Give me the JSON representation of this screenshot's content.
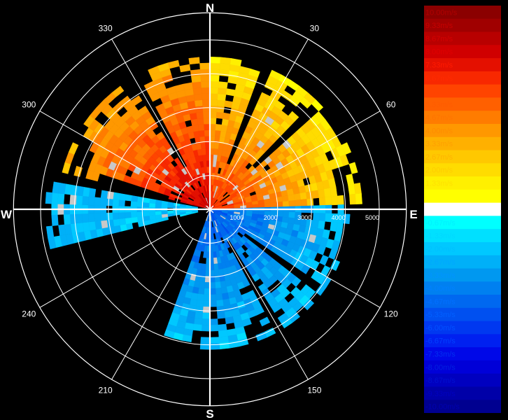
{
  "chart_data": {
    "type": "polar-heatmap",
    "title": "",
    "cardinal_labels": {
      "north": "N",
      "east": "E",
      "south": "S",
      "west": "W"
    },
    "azimuth_labels": [
      {
        "angle": 30,
        "text": "30"
      },
      {
        "angle": 60,
        "text": "60"
      },
      {
        "angle": 120,
        "text": "120"
      },
      {
        "angle": 150,
        "text": "150"
      },
      {
        "angle": 210,
        "text": "210"
      },
      {
        "angle": 240,
        "text": "240"
      },
      {
        "angle": 300,
        "text": "300"
      },
      {
        "angle": 330,
        "text": "330"
      }
    ],
    "range_rings": [
      1000,
      2000,
      3000,
      4000,
      5000
    ],
    "range_ring_labels": [
      "1000",
      "2000",
      "3000",
      "4000",
      "5000"
    ],
    "range_max": 5800,
    "grid": true,
    "legend_position": "right",
    "unit": "m/s",
    "colorbar": [
      {
        "label": "10.00m/s",
        "color": "#8b0000",
        "text_color": "#b00000"
      },
      {
        "label": "9.33m/s",
        "color": "#a00000",
        "text_color": "#c80000"
      },
      {
        "label": "8.67m/s",
        "color": "#b80000",
        "text_color": "#d40000"
      },
      {
        "label": "8.00m/s",
        "color": "#d00000",
        "text_color": "#e00000"
      },
      {
        "label": "7.33m/s",
        "color": "#e41000",
        "text_color": "#ff1a00"
      },
      {
        "label": "6.67m/s",
        "color": "#f82800",
        "text_color": "#ff2a00"
      },
      {
        "label": "6.00m/s",
        "color": "#ff4400",
        "text_color": "#ff4400"
      },
      {
        "label": "5.33m/s",
        "color": "#ff6000",
        "text_color": "#ff5c00"
      },
      {
        "label": "4.67m/s",
        "color": "#ff7c00",
        "text_color": "#ff7400"
      },
      {
        "label": "4.00m/s",
        "color": "#ff9800",
        "text_color": "#ff8c00"
      },
      {
        "label": "3.33m/s",
        "color": "#ffb000",
        "text_color": "#ffa000"
      },
      {
        "label": "2.67m/s",
        "color": "#ffc800",
        "text_color": "#ffb400"
      },
      {
        "label": "2.00m/s",
        "color": "#ffdc00",
        "text_color": "#ffcc00"
      },
      {
        "label": "1.33m/s",
        "color": "#fff000",
        "text_color": "#ffe000"
      },
      {
        "label": "0.67m/s",
        "color": "#ffff00",
        "text_color": "#ffff00"
      },
      {
        "label": "0.00m/s",
        "color": "#ffffff",
        "text_color": "#ffffff"
      },
      {
        "label": "-0.67m/s",
        "color": "#00ffff",
        "text_color": "#00f0ff"
      },
      {
        "label": "-1.33m/s",
        "color": "#00e0ff",
        "text_color": "#00d8ff"
      },
      {
        "label": "-2.00m/s",
        "color": "#00c8ff",
        "text_color": "#00c0ff"
      },
      {
        "label": "-2.67m/s",
        "color": "#00b0f8",
        "text_color": "#00a8ff"
      },
      {
        "label": "-3.33m/s",
        "color": "#0098f0",
        "text_color": "#0094ff"
      },
      {
        "label": "-4.00m/s",
        "color": "#0080f0",
        "text_color": "#0080ff"
      },
      {
        "label": "-4.67m/s",
        "color": "#0068f0",
        "text_color": "#0070ff"
      },
      {
        "label": "-5.33m/s",
        "color": "#0050f0",
        "text_color": "#0060ff"
      },
      {
        "label": "-6.00m/s",
        "color": "#0038f0",
        "text_color": "#0050ff"
      },
      {
        "label": "-6.67m/s",
        "color": "#0020f0",
        "text_color": "#0040ff"
      },
      {
        "label": "-7.33m/s",
        "color": "#0008e8",
        "text_color": "#0030f0"
      },
      {
        "label": "-8.00m/s",
        "color": "#0000d8",
        "text_color": "#0020e0"
      },
      {
        "label": "-8.67m/s",
        "color": "#0000c0",
        "text_color": "#0010d0"
      },
      {
        "label": "-9.33m/s",
        "color": "#0000a8",
        "text_color": "#0000c0"
      },
      {
        "label": "-10.00m/s",
        "color": "#000090",
        "text_color": "#0000b0"
      }
    ],
    "velocity_field": {
      "description_units": "radial velocity in m/s by sector",
      "sectors": [
        {
          "az_start": 285,
          "az_end": 360,
          "r_start": 0,
          "r_end": 4400,
          "v_near": 8.0,
          "v_far": 3.3
        },
        {
          "az_start": 0,
          "az_end": 90,
          "r_start": 0,
          "r_end": 4400,
          "v_near": 6.5,
          "v_far": 1.2
        },
        {
          "az_start": 90,
          "az_end": 230,
          "r_start": 0,
          "r_end": 4000,
          "v_near": -5.0,
          "v_far": -2.0
        },
        {
          "az_start": 255,
          "az_end": 282,
          "r_start": 300,
          "r_end": 4800,
          "v_near": -2.0,
          "v_far": -2.5
        }
      ],
      "gaps": [
        {
          "az_start": 20,
          "az_end": 25,
          "r_start": 1500,
          "r_end": 4400
        },
        {
          "az_start": 43,
          "az_end": 47,
          "r_start": 1800,
          "r_end": 4400
        },
        {
          "az_start": 125,
          "az_end": 130,
          "r_start": 1200,
          "r_end": 4000
        },
        {
          "az_start": 148,
          "az_end": 152,
          "r_start": 1000,
          "r_end": 4000
        },
        {
          "az_start": 200,
          "az_end": 255,
          "r_start": 0,
          "r_end": 6000
        },
        {
          "az_start": 282,
          "az_end": 287,
          "r_start": 1200,
          "r_end": 3500
        },
        {
          "az_start": 327,
          "az_end": 332,
          "r_start": 1400,
          "r_end": 4400
        }
      ]
    }
  }
}
